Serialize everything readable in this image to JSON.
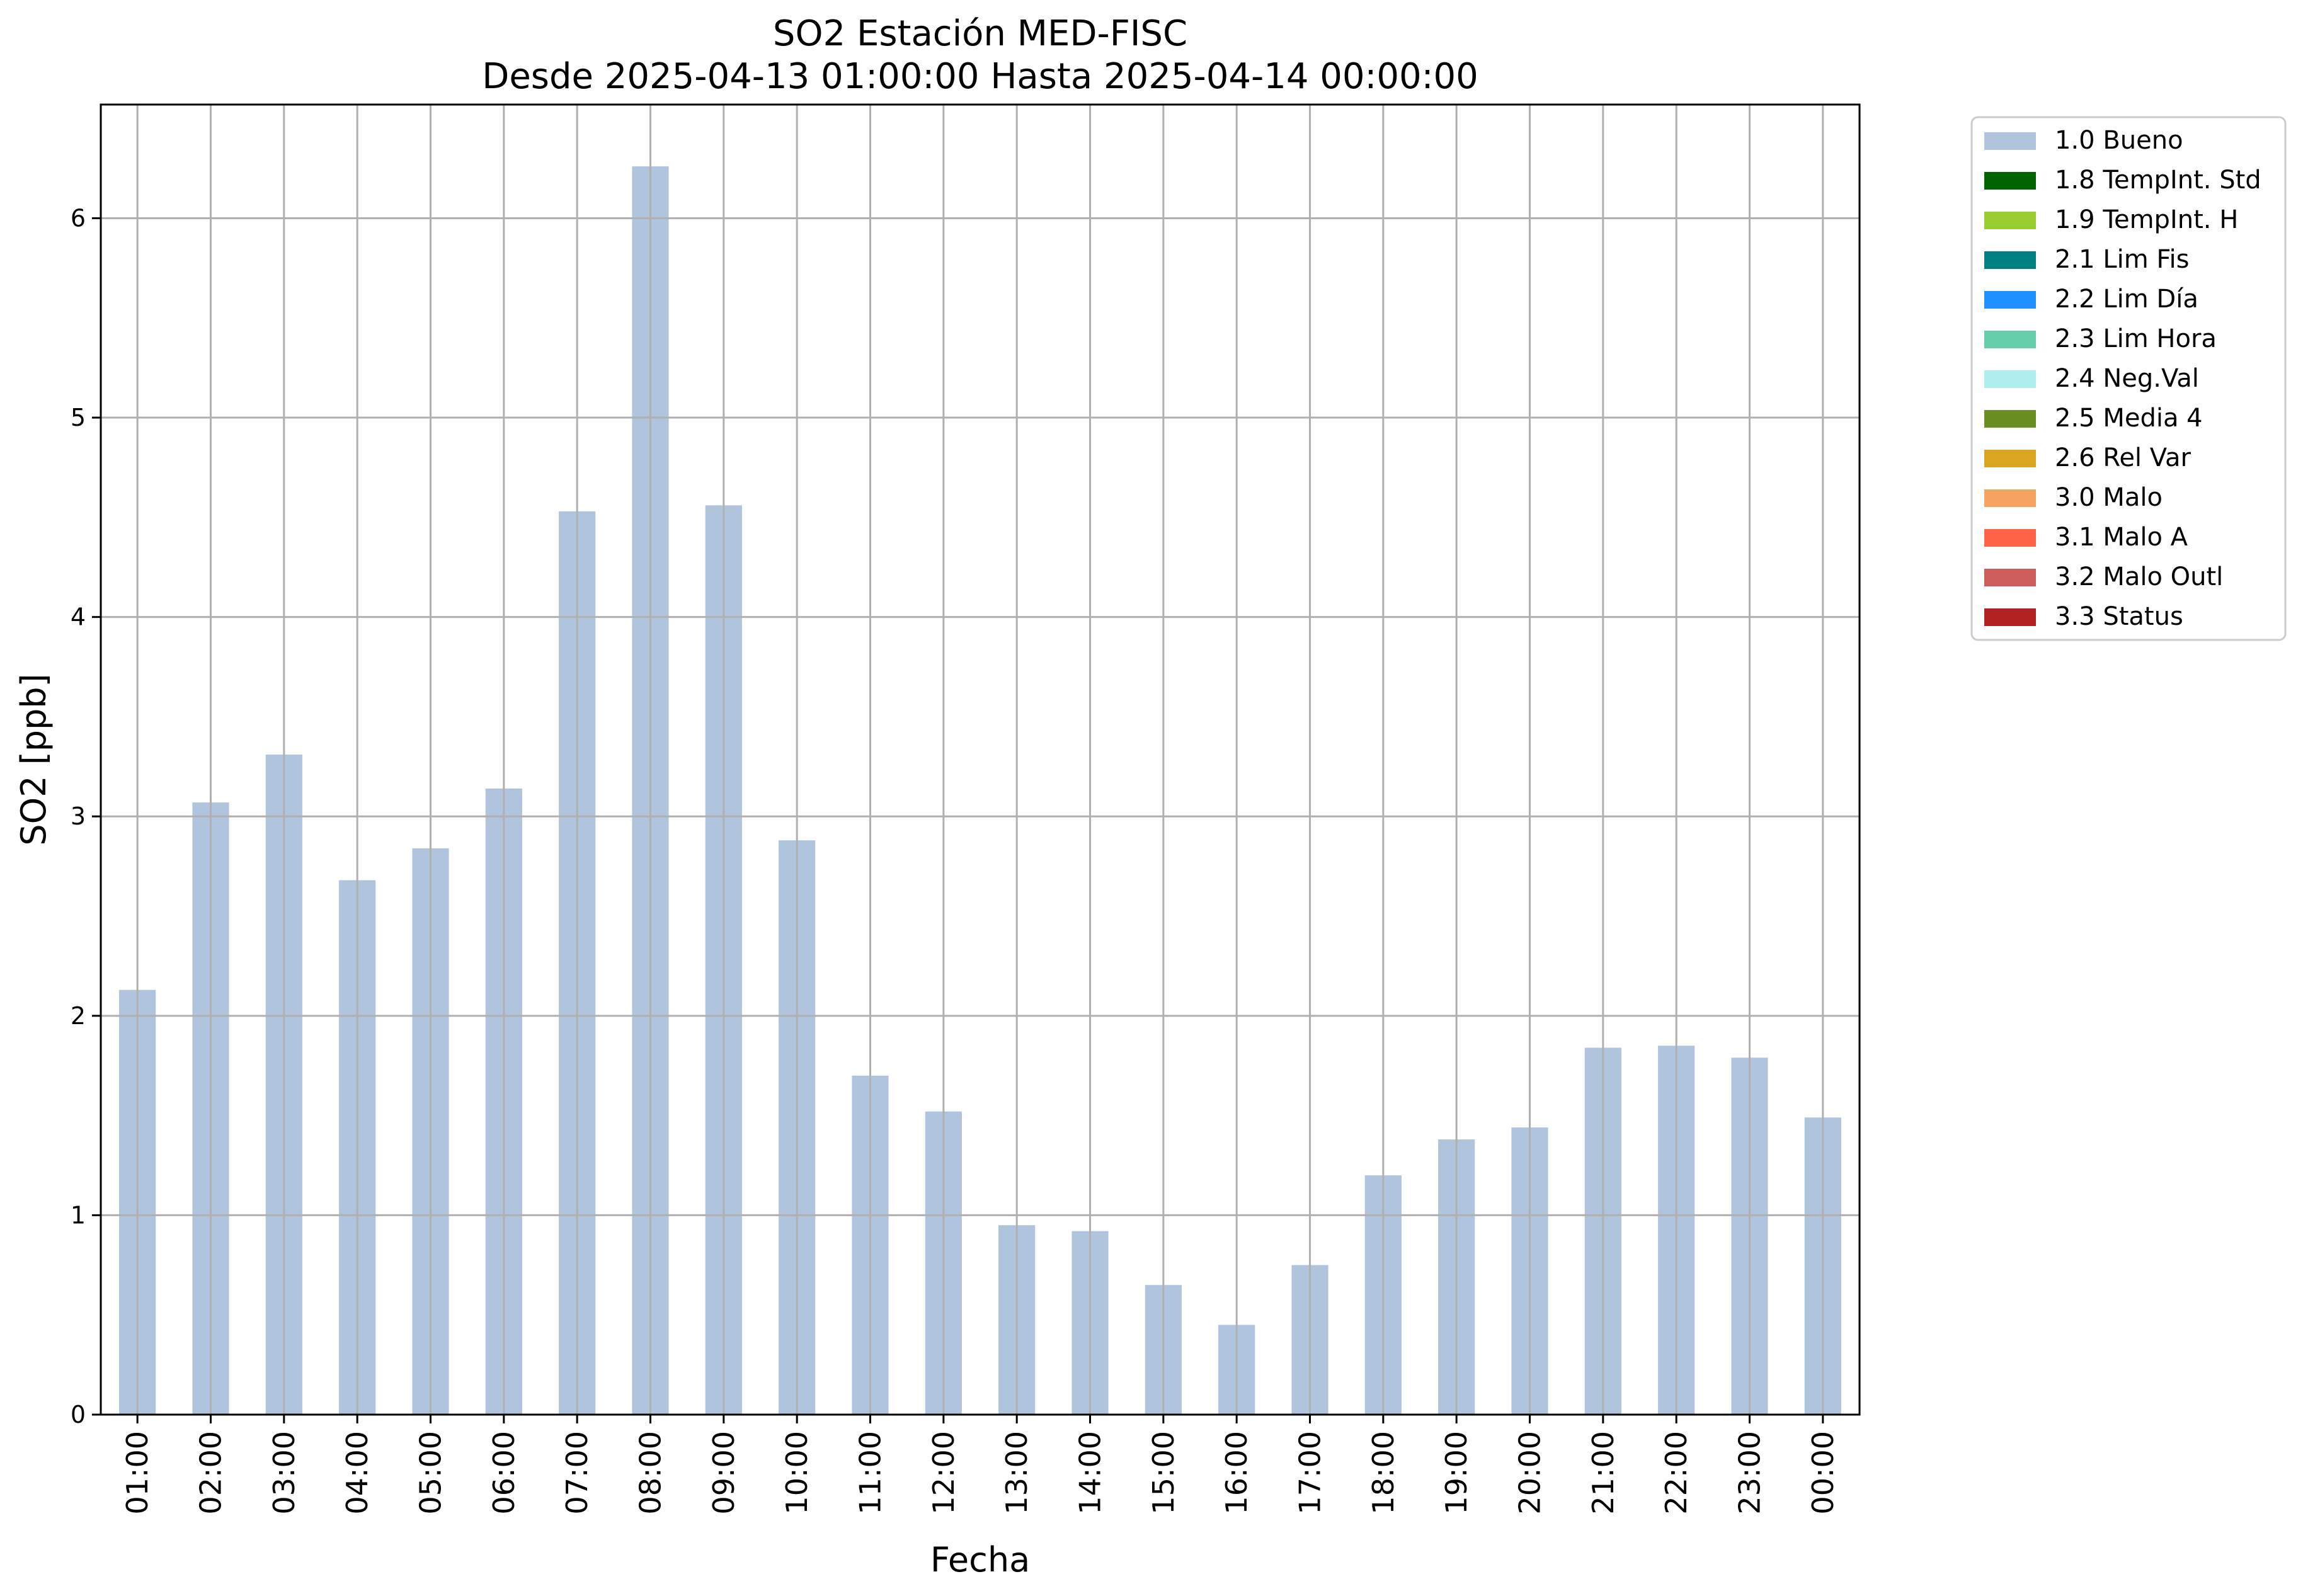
{
  "chart_data": {
    "type": "bar",
    "title": "SO2 Estación MED-FISC",
    "subtitle": "Desde 2025-04-13 01:00:00 Hasta 2025-04-14 00:00:00",
    "xlabel": "Fecha",
    "ylabel": "SO2 [ppb]",
    "ylim": [
      0,
      6.57
    ],
    "yticks": [
      "0",
      "1",
      "2",
      "3",
      "4",
      "5",
      "6"
    ],
    "grid": true,
    "legend_position": "outside-right",
    "categories": [
      "01:00",
      "02:00",
      "03:00",
      "04:00",
      "05:00",
      "06:00",
      "07:00",
      "08:00",
      "09:00",
      "10:00",
      "11:00",
      "12:00",
      "13:00",
      "14:00",
      "15:00",
      "16:00",
      "17:00",
      "18:00",
      "19:00",
      "20:00",
      "21:00",
      "22:00",
      "23:00",
      "00:00"
    ],
    "series": [
      {
        "name": "1.0 Bueno",
        "color": "#b0c4de",
        "values": [
          2.13,
          3.07,
          3.31,
          2.68,
          2.84,
          3.14,
          4.53,
          6.26,
          4.56,
          2.88,
          1.7,
          1.52,
          0.95,
          0.92,
          0.65,
          0.45,
          0.75,
          1.2,
          1.38,
          1.44,
          1.84,
          1.85,
          1.79,
          1.49
        ]
      }
    ],
    "legend": [
      {
        "label": "1.0 Bueno",
        "color": "#b0c4de"
      },
      {
        "label": "1.8 TempInt. Std",
        "color": "#006400"
      },
      {
        "label": "1.9 TempInt. H",
        "color": "#9acd32"
      },
      {
        "label": "2.1 Lim Fis",
        "color": "#008080"
      },
      {
        "label": "2.2 Lim Día",
        "color": "#1e90ff"
      },
      {
        "label": "2.3 Lim Hora",
        "color": "#66cdaa"
      },
      {
        "label": "2.4 Neg.Val",
        "color": "#afeeee"
      },
      {
        "label": "2.5 Media 4",
        "color": "#6b8e23"
      },
      {
        "label": "2.6 Rel Var",
        "color": "#daa520"
      },
      {
        "label": "3.0 Malo",
        "color": "#f4a460"
      },
      {
        "label": "3.1 Malo A",
        "color": "#ff6347"
      },
      {
        "label": "3.2 Malo Outl",
        "color": "#cd5c5c"
      },
      {
        "label": "3.3 Status",
        "color": "#b22222"
      }
    ]
  }
}
